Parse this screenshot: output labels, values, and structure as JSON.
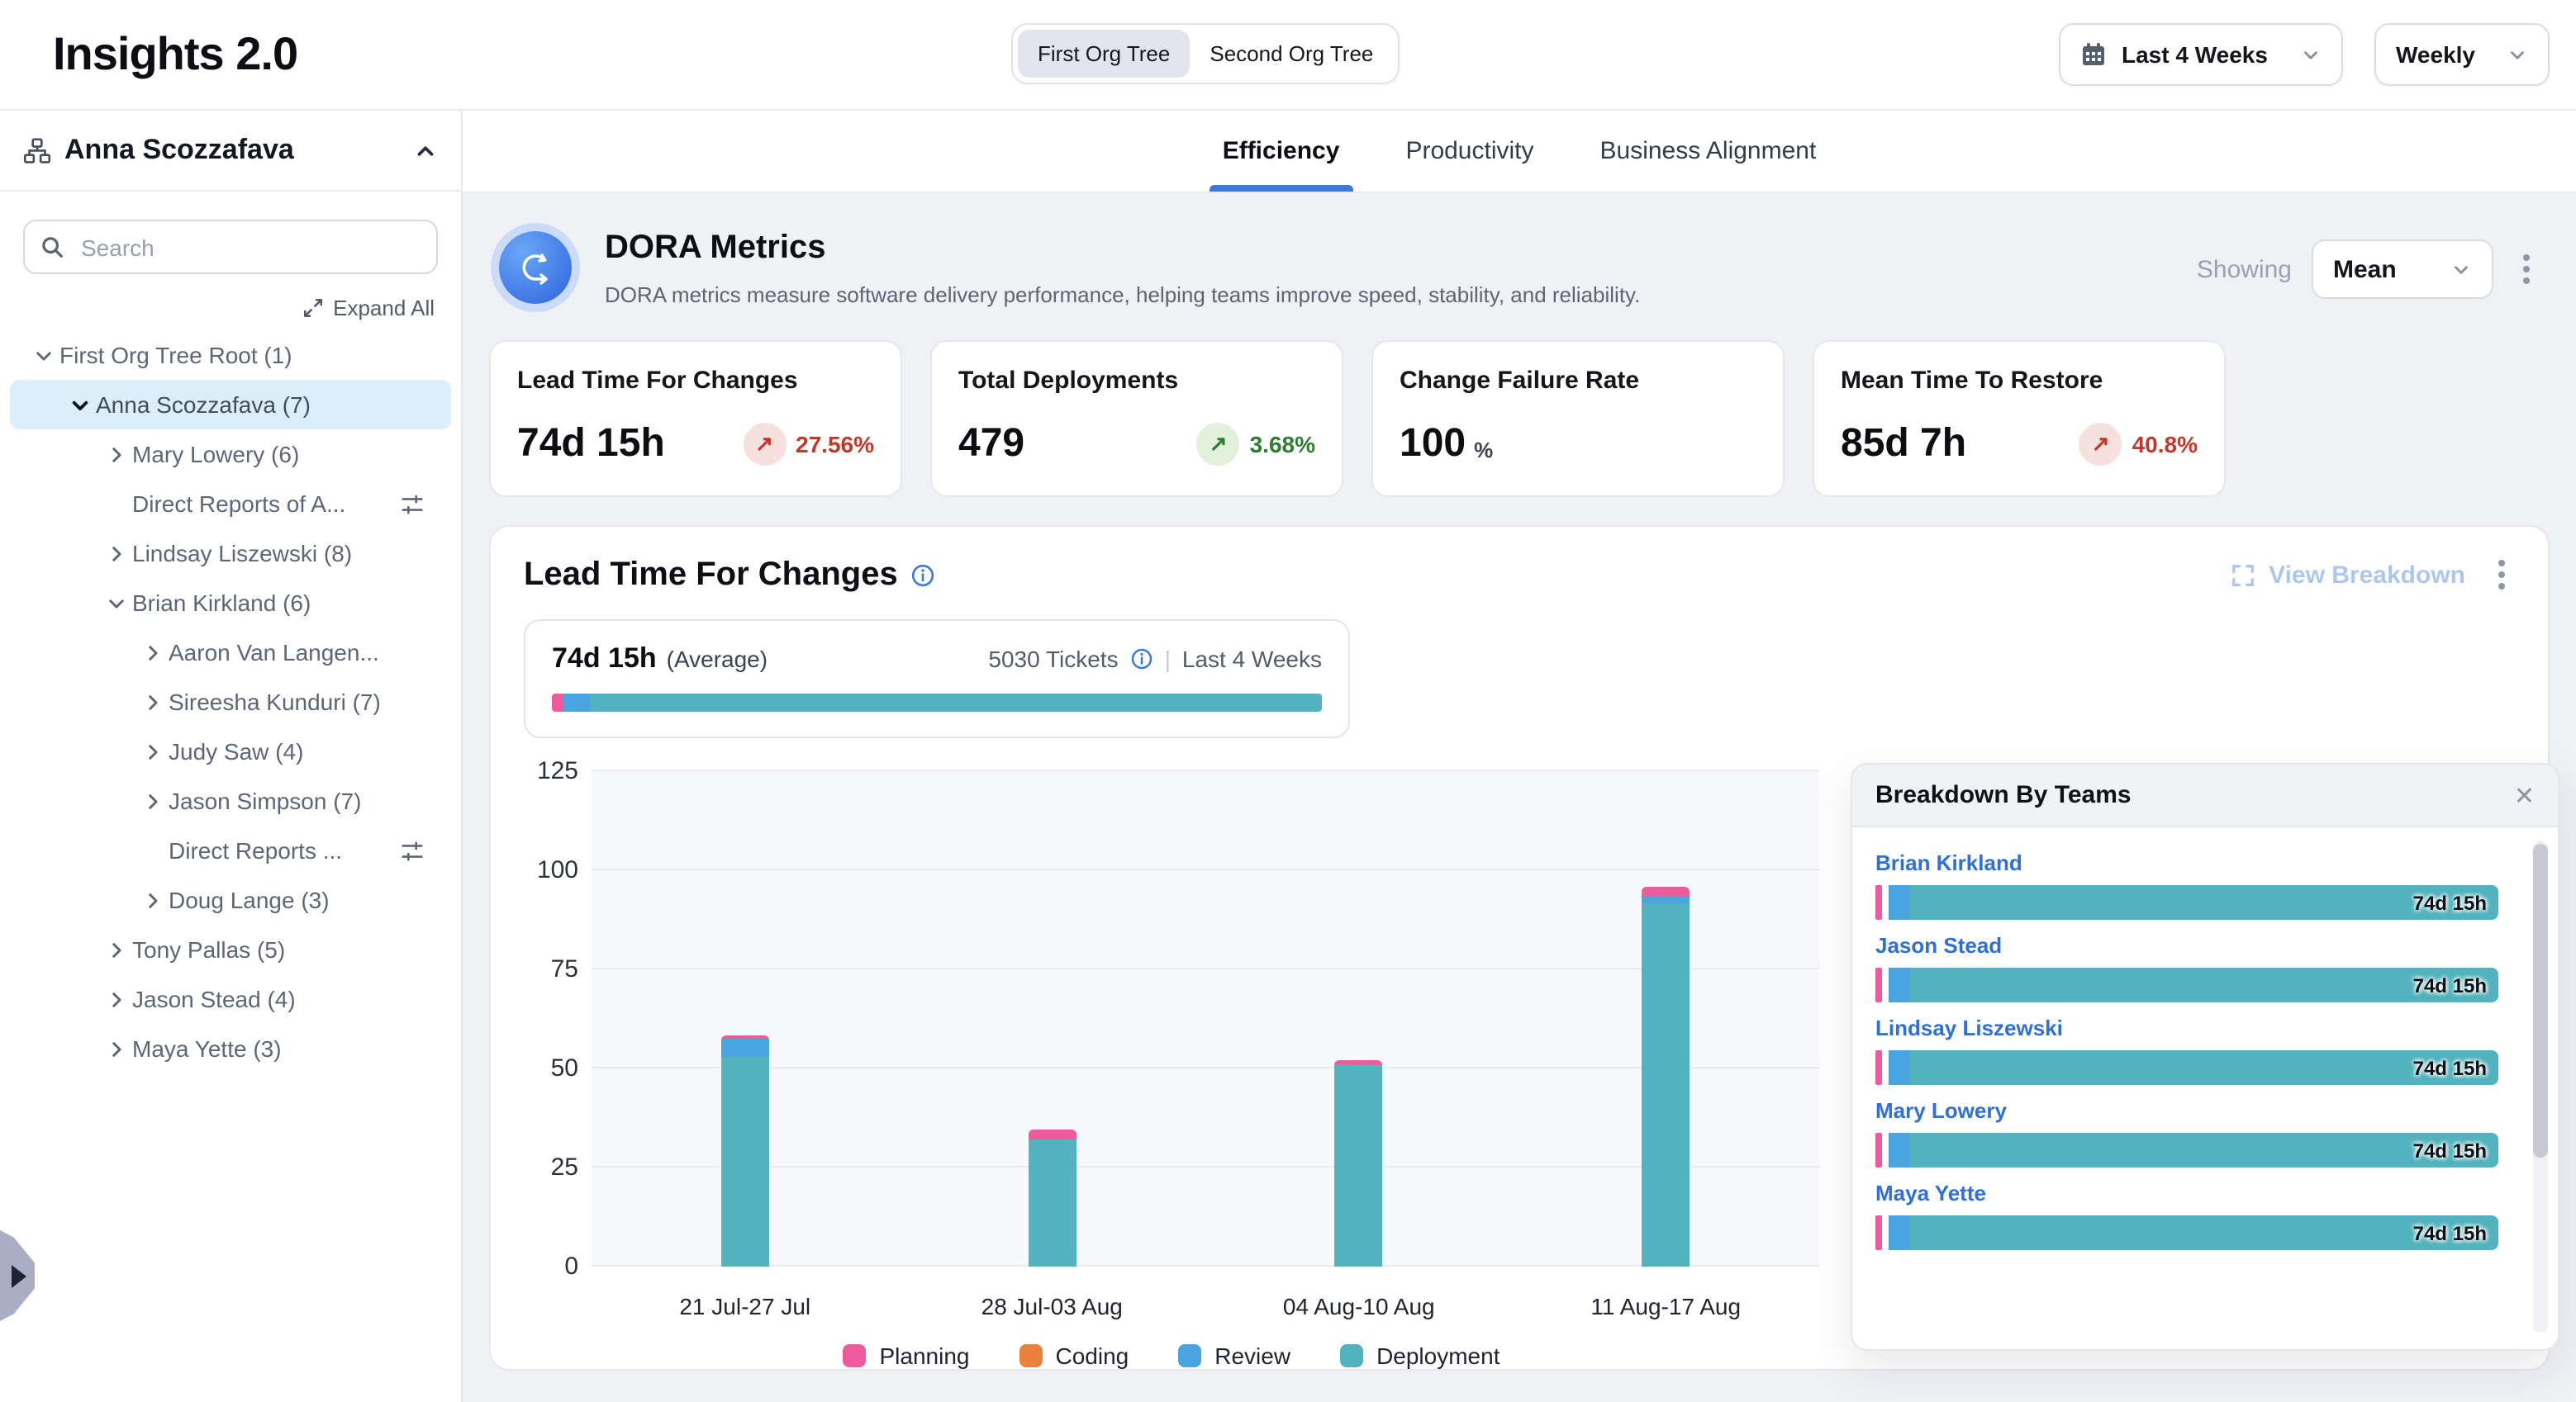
{
  "app": {
    "title": "Insights 2.0"
  },
  "topbar": {
    "org_tree_toggle": {
      "options": [
        "First Org Tree",
        "Second Org Tree"
      ],
      "active": "First Org Tree"
    },
    "date_range": "Last 4 Weeks",
    "granularity": "Weekly"
  },
  "sidebar": {
    "user": "Anna Scozzafava",
    "search_placeholder": "Search",
    "expand_all_label": "Expand All",
    "tree": [
      {
        "label": "First Org Tree Root (1)",
        "level": 0,
        "chevron": "down",
        "active": false,
        "filter_icon": false
      },
      {
        "label": "Anna Scozzafava (7)",
        "level": 1,
        "chevron": "down",
        "active": true,
        "filter_icon": false
      },
      {
        "label": "Mary Lowery (6)",
        "level": 2,
        "chevron": "right",
        "active": false,
        "filter_icon": false
      },
      {
        "label": "Direct Reports of A...",
        "level": 2,
        "chevron": "none",
        "active": false,
        "filter_icon": true
      },
      {
        "label": "Lindsay Liszewski (8)",
        "level": 2,
        "chevron": "right",
        "active": false,
        "filter_icon": false
      },
      {
        "label": "Brian Kirkland (6)",
        "level": 2,
        "chevron": "down",
        "active": false,
        "filter_icon": false
      },
      {
        "label": "Aaron Van Langen...",
        "level": 3,
        "chevron": "right",
        "active": false,
        "filter_icon": false
      },
      {
        "label": "Sireesha Kunduri (7)",
        "level": 3,
        "chevron": "right",
        "active": false,
        "filter_icon": false
      },
      {
        "label": "Judy Saw (4)",
        "level": 3,
        "chevron": "right",
        "active": false,
        "filter_icon": false
      },
      {
        "label": "Jason Simpson (7)",
        "level": 3,
        "chevron": "right",
        "active": false,
        "filter_icon": false
      },
      {
        "label": "Direct Reports ...",
        "level": 3,
        "chevron": "none",
        "active": false,
        "filter_icon": true
      },
      {
        "label": "Doug Lange (3)",
        "level": 3,
        "chevron": "right",
        "active": false,
        "filter_icon": false
      },
      {
        "label": "Tony Pallas (5)",
        "level": 2,
        "chevron": "right",
        "active": false,
        "filter_icon": false
      },
      {
        "label": "Jason Stead (4)",
        "level": 2,
        "chevron": "right",
        "active": false,
        "filter_icon": false
      },
      {
        "label": "Maya Yette (3)",
        "level": 2,
        "chevron": "right",
        "active": false,
        "filter_icon": false
      }
    ]
  },
  "tabs": {
    "items": [
      "Efficiency",
      "Productivity",
      "Business Alignment"
    ],
    "active": "Efficiency"
  },
  "dora": {
    "title": "DORA Metrics",
    "description": "DORA metrics measure software delivery performance, helping teams improve speed, stability, and reliability.",
    "showing_label": "Showing",
    "showing_value": "Mean",
    "metrics": [
      {
        "title": "Lead Time For Changes",
        "value": "74d 15h",
        "unit": "",
        "trend": {
          "direction": "up",
          "pct": "27.56%",
          "tone": "bad"
        }
      },
      {
        "title": "Total Deployments",
        "value": "479",
        "unit": "",
        "trend": {
          "direction": "up",
          "pct": "3.68%",
          "tone": "good"
        }
      },
      {
        "title": "Change Failure Rate",
        "value": "100",
        "unit": "%",
        "trend": null
      },
      {
        "title": "Mean Time To Restore",
        "value": "85d 7h",
        "unit": "",
        "trend": {
          "direction": "up",
          "pct": "40.8%",
          "tone": "bad"
        }
      }
    ]
  },
  "lead_time": {
    "title": "Lead Time For Changes",
    "view_breakdown_label": "View Breakdown",
    "average_value": "74d 15h",
    "average_label": "(Average)",
    "tickets": "5030 Tickets",
    "period": "Last 4 Weeks",
    "summary_bar": [
      {
        "name": "Planning",
        "color": "#ee5a9c",
        "pct": 1.6
      },
      {
        "name": "Review",
        "color": "#49a4e0",
        "pct": 3.4
      },
      {
        "name": "Deployment",
        "color": "#52b2bd",
        "pct": 95.0
      }
    ]
  },
  "chart_data": {
    "type": "bar",
    "subtype": "stacked-vertical",
    "title": "Lead Time For Changes",
    "categories": [
      "21 Jul-27 Jul",
      "28 Jul-03 Aug",
      "04 Aug-10 Aug",
      "11 Aug-17 Aug"
    ],
    "series": [
      {
        "name": "Planning",
        "color": "#ee5a9c",
        "values": [
          0.8,
          2.5,
          1.2,
          2.5
        ]
      },
      {
        "name": "Coding",
        "color": "#e8823d",
        "values": [
          0,
          0,
          0,
          0
        ]
      },
      {
        "name": "Review",
        "color": "#49a4e0",
        "values": [
          4.5,
          0,
          0,
          2
        ]
      },
      {
        "name": "Deployment",
        "color": "#52b2bd",
        "values": [
          53,
          32,
          51,
          91.5
        ]
      }
    ],
    "stack_order_bottom_to_top": [
      "Deployment",
      "Review",
      "Coding",
      "Planning"
    ],
    "ylim": [
      0,
      125
    ],
    "yticks": [
      0,
      25,
      50,
      75,
      100,
      125
    ],
    "grid": true,
    "legend_position": "bottom"
  },
  "breakdown": {
    "title": "Breakdown By Teams",
    "rows": [
      {
        "name": "Brian Kirkland",
        "value": "74d 15h"
      },
      {
        "name": "Jason Stead",
        "value": "74d 15h"
      },
      {
        "name": "Lindsay Liszewski",
        "value": "74d 15h"
      },
      {
        "name": "Mary Lowery",
        "value": "74d 15h"
      },
      {
        "name": "Maya Yette",
        "value": "74d 15h"
      }
    ]
  },
  "colors": {
    "planning": "#ee5a9c",
    "coding": "#e8823d",
    "review": "#49a4e0",
    "deployment": "#52b2bd",
    "accent_blue": "#3b78d8",
    "link_blue": "#2e6fd8",
    "bad_red": "#bf3a2d",
    "good_green": "#2f7d33"
  }
}
